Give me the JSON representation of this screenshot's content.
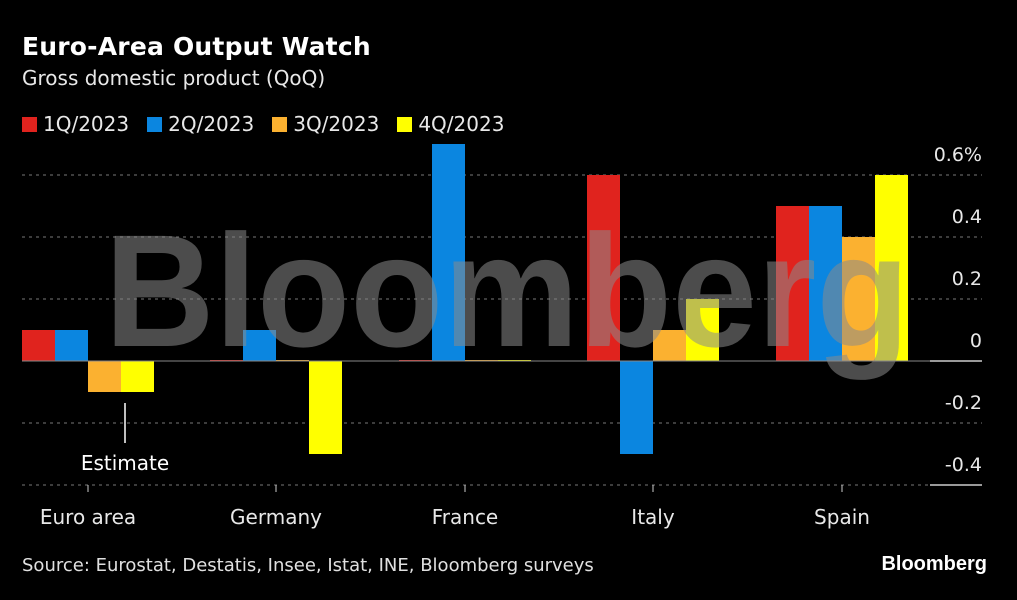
{
  "header": {
    "title": "Euro-Area Output Watch",
    "subtitle": "Gross domestic product (QoQ)"
  },
  "footer": {
    "source": "Source: Eurostat, Destatis, Insee, Istat, INE, Bloomberg surveys",
    "brand": "Bloomberg"
  },
  "watermark": "Bloomberg",
  "chart_data": {
    "type": "bar",
    "title": "Euro-Area Output Watch",
    "subtitle": "Gross domestic product (QoQ)",
    "xlabel": "",
    "ylabel": "",
    "categories": [
      "Euro area",
      "Germany",
      "France",
      "Italy",
      "Spain"
    ],
    "series": [
      {
        "name": "1Q/2023",
        "color": "#e0231e",
        "values": [
          0.1,
          0.0,
          0.0,
          0.6,
          0.5
        ]
      },
      {
        "name": "2Q/2023",
        "color": "#0b86e0",
        "values": [
          0.1,
          0.1,
          0.7,
          -0.3,
          0.5
        ]
      },
      {
        "name": "3Q/2023",
        "color": "#fbb130",
        "values": [
          -0.1,
          0.0,
          0.0,
          0.1,
          0.4
        ]
      },
      {
        "name": "4Q/2023",
        "color": "#ffff00",
        "values": [
          -0.1,
          -0.3,
          0.0,
          0.2,
          0.6
        ]
      }
    ],
    "ylim": [
      -0.4,
      0.6
    ],
    "yticks": [
      0.6,
      0.4,
      0.2,
      0,
      -0.2,
      -0.4
    ],
    "ytick_labels": [
      "0.6%",
      "0.4",
      "0.2",
      "0",
      "-0.2",
      "-0.4"
    ],
    "grid": true,
    "legend_position": "top-left",
    "y_axis_side": "right",
    "annotations": [
      {
        "text": "Estimate",
        "category": "Euro area",
        "series": [
          "3Q/2023",
          "4Q/2023"
        ]
      }
    ]
  }
}
